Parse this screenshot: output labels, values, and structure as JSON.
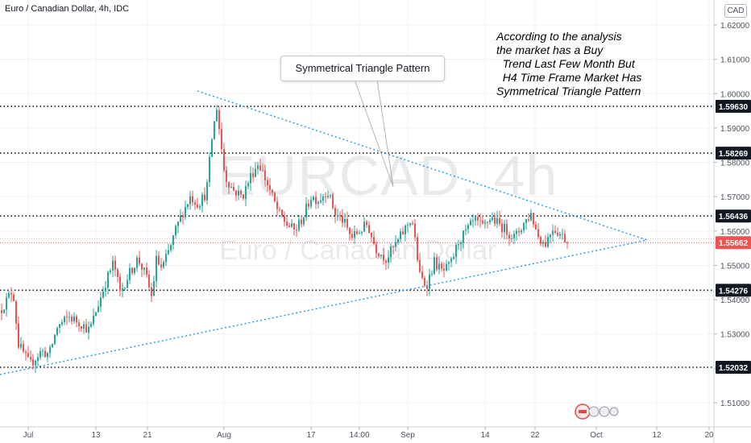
{
  "header": {
    "title": "Euro / Canadian Dollar, 4h, IDC",
    "currency": "CAD"
  },
  "watermark": {
    "ticker": "EURCAD, 4h",
    "description": "Euro / Canadian Dollar"
  },
  "callout": {
    "text": "Symmetrical Triangle Pattern"
  },
  "annotation": {
    "lines": [
      "According to the analysis",
      "the market has a Buy",
      "  Trend Last Few Month But",
      "  H4 Time Frame Market Has",
      "Symmetrical Triangle Pattern"
    ]
  },
  "chart_data": {
    "type": "candlestick",
    "symbol": "EURCAD",
    "timeframe": "4h",
    "ylim": [
      1.503,
      1.624
    ],
    "y_ticks": [
      "1.62000",
      "1.61000",
      "1.60000",
      "1.59000",
      "1.58000",
      "1.57000",
      "1.56000",
      "1.55000",
      "1.54000",
      "1.53000",
      "1.52000",
      "1.51000"
    ],
    "x_ticks": [
      "Jul",
      "13",
      "21",
      "Aug",
      "17",
      "14:00",
      "Sep",
      "14",
      "22",
      "Oct",
      "12",
      "20"
    ],
    "price_levels": [
      {
        "label": "1.59630",
        "value": 1.5963
      },
      {
        "label": "1.58269",
        "value": 1.58269
      },
      {
        "label": "1.56436",
        "value": 1.56436
      },
      {
        "label": "1.54276",
        "value": 1.54276
      },
      {
        "label": "1.52032",
        "value": 1.52032
      }
    ],
    "current_price": {
      "label": "1.55662",
      "value": 1.55662
    },
    "trendlines": [
      {
        "name": "upper",
        "from": {
          "x": "Jul 29",
          "y": 1.5995
        },
        "to": {
          "x": "Oct 9",
          "y": 1.5571
        }
      },
      {
        "name": "lower",
        "from": {
          "x": "Jun 28",
          "y": 1.5165
        },
        "to": {
          "x": "Oct 9",
          "y": 1.5571
        }
      }
    ],
    "price_path": [
      {
        "x": 0,
        "y": 1.537
      },
      {
        "x": 15,
        "y": 1.543
      },
      {
        "x": 22,
        "y": 1.527
      },
      {
        "x": 36,
        "y": 1.521
      },
      {
        "x": 50,
        "y": 1.525
      },
      {
        "x": 60,
        "y": 1.524
      },
      {
        "x": 70,
        "y": 1.532
      },
      {
        "x": 85,
        "y": 1.535
      },
      {
        "x": 100,
        "y": 1.533
      },
      {
        "x": 110,
        "y": 1.531
      },
      {
        "x": 120,
        "y": 1.538
      },
      {
        "x": 130,
        "y": 1.545
      },
      {
        "x": 140,
        "y": 1.551
      },
      {
        "x": 148,
        "y": 1.542
      },
      {
        "x": 158,
        "y": 1.547
      },
      {
        "x": 170,
        "y": 1.552
      },
      {
        "x": 180,
        "y": 1.547
      },
      {
        "x": 188,
        "y": 1.54
      },
      {
        "x": 192,
        "y": 1.552
      },
      {
        "x": 200,
        "y": 1.549
      },
      {
        "x": 210,
        "y": 1.555
      },
      {
        "x": 218,
        "y": 1.561
      },
      {
        "x": 225,
        "y": 1.565
      },
      {
        "x": 235,
        "y": 1.57
      },
      {
        "x": 245,
        "y": 1.568
      },
      {
        "x": 255,
        "y": 1.571
      },
      {
        "x": 262,
        "y": 1.587
      },
      {
        "x": 268,
        "y": 1.596
      },
      {
        "x": 272,
        "y": 1.588
      },
      {
        "x": 278,
        "y": 1.576
      },
      {
        "x": 288,
        "y": 1.572
      },
      {
        "x": 300,
        "y": 1.57
      },
      {
        "x": 310,
        "y": 1.576
      },
      {
        "x": 320,
        "y": 1.58
      },
      {
        "x": 332,
        "y": 1.573
      },
      {
        "x": 345,
        "y": 1.565
      },
      {
        "x": 355,
        "y": 1.562
      },
      {
        "x": 365,
        "y": 1.56
      },
      {
        "x": 375,
        "y": 1.564
      },
      {
        "x": 385,
        "y": 1.57
      },
      {
        "x": 395,
        "y": 1.569
      },
      {
        "x": 405,
        "y": 1.572
      },
      {
        "x": 415,
        "y": 1.565
      },
      {
        "x": 425,
        "y": 1.563
      },
      {
        "x": 435,
        "y": 1.558
      },
      {
        "x": 445,
        "y": 1.56
      },
      {
        "x": 455,
        "y": 1.562
      },
      {
        "x": 465,
        "y": 1.555
      },
      {
        "x": 478,
        "y": 1.552
      },
      {
        "x": 490,
        "y": 1.556
      },
      {
        "x": 500,
        "y": 1.56
      },
      {
        "x": 510,
        "y": 1.564
      },
      {
        "x": 520,
        "y": 1.547
      },
      {
        "x": 528,
        "y": 1.544
      },
      {
        "x": 538,
        "y": 1.551
      },
      {
        "x": 548,
        "y": 1.548
      },
      {
        "x": 558,
        "y": 1.55
      },
      {
        "x": 568,
        "y": 1.557
      },
      {
        "x": 578,
        "y": 1.56
      },
      {
        "x": 588,
        "y": 1.563
      },
      {
        "x": 598,
        "y": 1.561
      },
      {
        "x": 608,
        "y": 1.564
      },
      {
        "x": 618,
        "y": 1.562
      },
      {
        "x": 628,
        "y": 1.56
      },
      {
        "x": 638,
        "y": 1.558
      },
      {
        "x": 648,
        "y": 1.562
      },
      {
        "x": 658,
        "y": 1.565
      },
      {
        "x": 666,
        "y": 1.559
      },
      {
        "x": 675,
        "y": 1.556
      },
      {
        "x": 685,
        "y": 1.561
      },
      {
        "x": 695,
        "y": 1.559
      },
      {
        "x": 705,
        "y": 1.5566
      }
    ]
  }
}
